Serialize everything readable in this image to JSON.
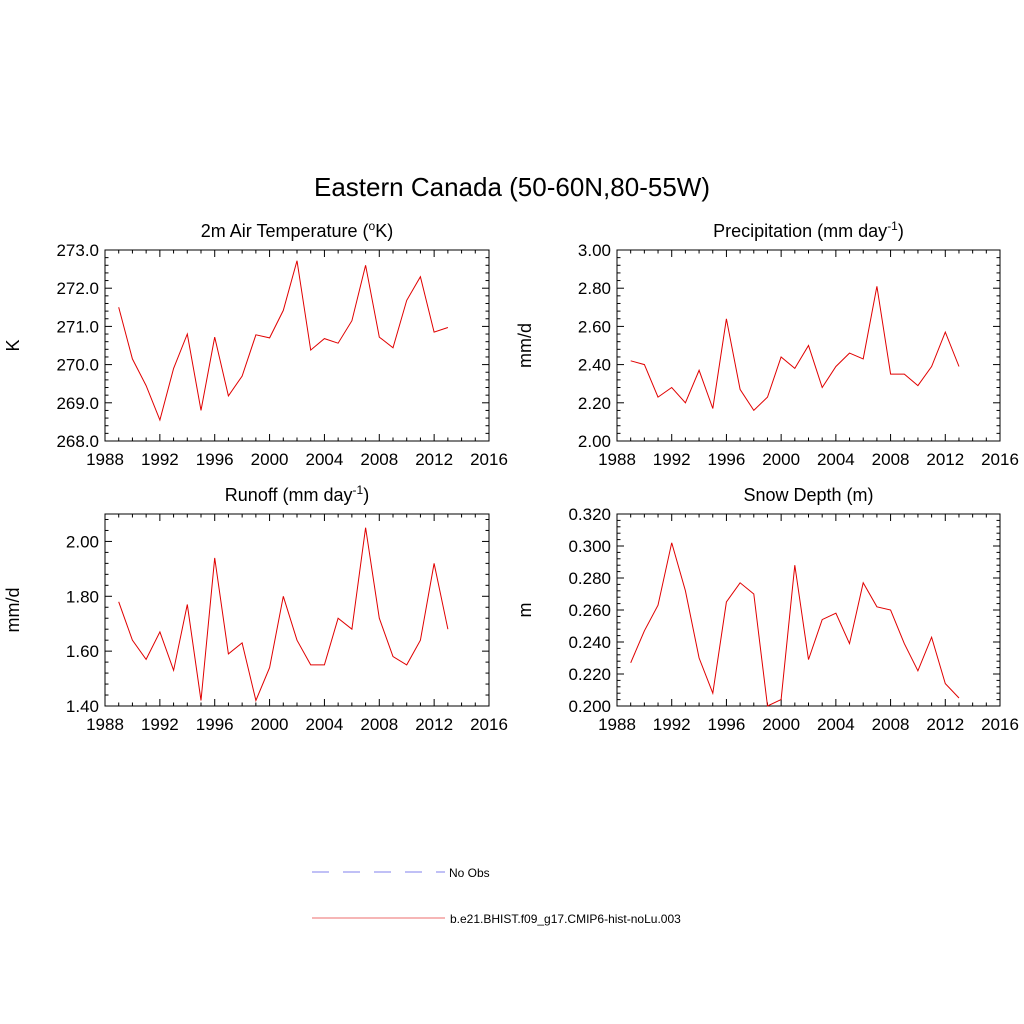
{
  "figure": {
    "title": "Eastern Canada (50-60N,80-55W)"
  },
  "colors": {
    "model_line": "#e00000",
    "obs_line": "#9a9af0",
    "axis": "#000000"
  },
  "legend": {
    "entries": [
      {
        "label": "No Obs",
        "style": "dashed",
        "color": "#9a9af0"
      },
      {
        "label": "b.e21.BHIST.f09_g17.CMIP6-hist-noLu.003",
        "style": "solid",
        "color": "#f08a8a"
      }
    ]
  },
  "chart_data": [
    {
      "type": "line",
      "title": "2m Air Temperature (",
      "title_sup": "o",
      "title_suffix": "K)",
      "ylabel": "K",
      "xlim": [
        1988,
        2016
      ],
      "ylim": [
        268.0,
        273.0
      ],
      "xticks": [
        "1988",
        "1992",
        "1996",
        "2000",
        "2004",
        "2008",
        "2012",
        "2016"
      ],
      "xtick_values": [
        1988,
        1992,
        1996,
        2000,
        2004,
        2008,
        2012,
        2016
      ],
      "yticks": [
        "268.0",
        "269.0",
        "270.0",
        "271.0",
        "272.0",
        "273.0"
      ],
      "ytick_values": [
        268,
        269,
        270,
        271,
        272,
        273
      ],
      "x": [
        1989,
        1990,
        1991,
        1992,
        1993,
        1994,
        1995,
        1996,
        1997,
        1998,
        1999,
        2000,
        2001,
        2002,
        2003,
        2004,
        2005,
        2006,
        2007,
        2008,
        2009,
        2010,
        2011,
        2012,
        2013
      ],
      "series": [
        {
          "values": [
            271.5,
            270.15,
            269.45,
            268.55,
            269.9,
            270.8,
            268.8,
            270.72,
            269.18,
            269.7,
            270.78,
            270.7,
            271.42,
            272.72,
            270.38,
            270.68,
            270.56,
            271.15,
            272.6,
            270.72,
            270.44,
            271.68,
            272.3,
            270.85,
            270.97
          ]
        }
      ]
    },
    {
      "type": "line",
      "title": "Precipitation (mm day",
      "title_sup": "-1",
      "title_suffix": ")",
      "ylabel": "mm/d",
      "xlim": [
        1988,
        2016
      ],
      "ylim": [
        2.0,
        3.0
      ],
      "xticks": [
        "1988",
        "1992",
        "1996",
        "2000",
        "2004",
        "2008",
        "2012",
        "2016"
      ],
      "xtick_values": [
        1988,
        1992,
        1996,
        2000,
        2004,
        2008,
        2012,
        2016
      ],
      "yticks": [
        "2.00",
        "2.20",
        "2.40",
        "2.60",
        "2.80",
        "3.00"
      ],
      "ytick_values": [
        2.0,
        2.2,
        2.4,
        2.6,
        2.8,
        3.0
      ],
      "x": [
        1989,
        1990,
        1991,
        1992,
        1993,
        1994,
        1995,
        1996,
        1997,
        1998,
        1999,
        2000,
        2001,
        2002,
        2003,
        2004,
        2005,
        2006,
        2007,
        2008,
        2009,
        2010,
        2011,
        2012,
        2013
      ],
      "series": [
        {
          "values": [
            2.42,
            2.4,
            2.23,
            2.28,
            2.2,
            2.37,
            2.17,
            2.64,
            2.27,
            2.16,
            2.23,
            2.44,
            2.38,
            2.5,
            2.28,
            2.39,
            2.46,
            2.43,
            2.81,
            2.35,
            2.35,
            2.29,
            2.39,
            2.57,
            2.39
          ]
        }
      ]
    },
    {
      "type": "line",
      "title": "Runoff (mm day",
      "title_sup": "-1",
      "title_suffix": ")",
      "ylabel": "mm/d",
      "xlim": [
        1988,
        2016
      ],
      "ylim": [
        1.4,
        2.1
      ],
      "xticks": [
        "1988",
        "1992",
        "1996",
        "2000",
        "2004",
        "2008",
        "2012",
        "2016"
      ],
      "xtick_values": [
        1988,
        1992,
        1996,
        2000,
        2004,
        2008,
        2012,
        2016
      ],
      "yticks": [
        "1.40",
        "1.60",
        "1.80",
        "2.00"
      ],
      "ytick_values": [
        1.4,
        1.6,
        1.8,
        2.0
      ],
      "x": [
        1989,
        1990,
        1991,
        1992,
        1993,
        1994,
        1995,
        1996,
        1997,
        1998,
        1999,
        2000,
        2001,
        2002,
        2003,
        2004,
        2005,
        2006,
        2007,
        2008,
        2009,
        2010,
        2011,
        2012,
        2013
      ],
      "series": [
        {
          "values": [
            1.78,
            1.64,
            1.57,
            1.67,
            1.53,
            1.77,
            1.42,
            1.94,
            1.59,
            1.63,
            1.42,
            1.54,
            1.8,
            1.64,
            1.55,
            1.55,
            1.72,
            1.68,
            2.05,
            1.72,
            1.58,
            1.55,
            1.64,
            1.92,
            1.68
          ]
        }
      ]
    },
    {
      "type": "line",
      "title": "Snow Depth (m)",
      "title_sup": "",
      "title_suffix": "",
      "ylabel": "m",
      "xlim": [
        1988,
        2016
      ],
      "ylim": [
        0.2,
        0.32
      ],
      "xticks": [
        "1988",
        "1992",
        "1996",
        "2000",
        "2004",
        "2008",
        "2012",
        "2016"
      ],
      "xtick_values": [
        1988,
        1992,
        1996,
        2000,
        2004,
        2008,
        2012,
        2016
      ],
      "yticks": [
        "0.200",
        "0.220",
        "0.240",
        "0.260",
        "0.280",
        "0.300",
        "0.320"
      ],
      "ytick_values": [
        0.2,
        0.22,
        0.24,
        0.26,
        0.28,
        0.3,
        0.32
      ],
      "x": [
        1989,
        1990,
        1991,
        1992,
        1993,
        1994,
        1995,
        1996,
        1997,
        1998,
        1999,
        2000,
        2001,
        2002,
        2003,
        2004,
        2005,
        2006,
        2007,
        2008,
        2009,
        2010,
        2011,
        2012,
        2013
      ],
      "series": [
        {
          "values": [
            0.227,
            0.247,
            0.263,
            0.302,
            0.272,
            0.23,
            0.208,
            0.265,
            0.277,
            0.27,
            0.2,
            0.204,
            0.288,
            0.229,
            0.254,
            0.258,
            0.239,
            0.277,
            0.262,
            0.26,
            0.239,
            0.222,
            0.243,
            0.214,
            0.205
          ]
        }
      ]
    }
  ]
}
